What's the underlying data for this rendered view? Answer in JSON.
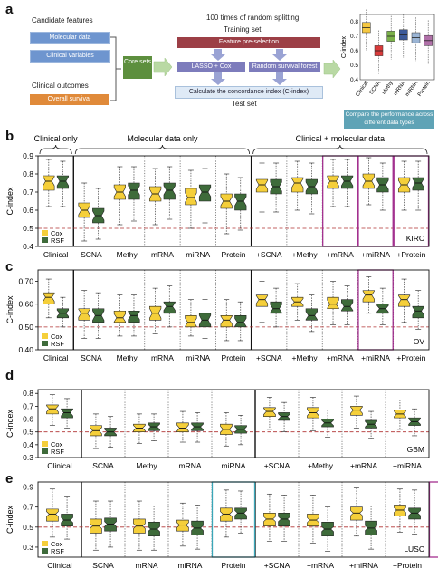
{
  "figure_a": {
    "panel_label": "a",
    "candidate_features_label": "Candidate features",
    "molecular_data_label": "Molecular data",
    "clinical_variables_label": "Clinical variables",
    "clinical_outcomes_label": "Clinical outcomes",
    "overall_survival_label": "Overall survival",
    "core_sets_label": "Core sets",
    "random_splitting_label": "100 times of random splitting",
    "training_set_label": "Training set",
    "feature_preselection_label": "Feature pre-selection",
    "lasso_cox_label": "LASSO + Cox",
    "random_forest_label": "Random survival forest",
    "concordance_label": "Calculate the concordance index (C-index)",
    "test_set_label": "Test set",
    "compare_label": "Compare the performance across different data types",
    "mini_chart": {
      "ylabel": "C-index",
      "yticks": [
        "0.8",
        "0.7",
        "0.6",
        "0.5",
        "0.4"
      ],
      "categories": [
        "Clinical",
        "SCNA",
        "Methy",
        "mRNA",
        "miRNA",
        "Protein"
      ],
      "colors": [
        "#f5c842",
        "#d93a3a",
        "#7ab04a",
        "#3c5a9a",
        "#9bb5d5",
        "#b070a8"
      ],
      "medians": [
        0.76,
        0.6,
        0.7,
        0.71,
        0.69,
        0.67
      ]
    }
  },
  "colors": {
    "cox": "#f5cf3a",
    "rsf": "#3e6b3a",
    "magenta_frame": "#a3308f",
    "cyan_frame": "#3aa6b8",
    "dashed": "#b03030",
    "blue_box": "#6e95cf",
    "orange_box": "#e08a3a",
    "green_box": "#5d8f3e",
    "maroon_box": "#9c3f46",
    "lavender_box": "#7d7cbc",
    "light_blue_box": "#dfeaf6",
    "teal_box": "#5fa3b6"
  },
  "chart_data": [
    {
      "panel": "b",
      "type": "box",
      "ylabel": "C-index",
      "ylim": [
        0.4,
        0.9
      ],
      "yticks": [
        0.4,
        0.5,
        0.6,
        0.7,
        0.8,
        0.9
      ],
      "ref_line": 0.5,
      "tag": "KIRC",
      "legend": [
        "Cox",
        "RSF"
      ],
      "groups": [
        {
          "label": "Clinical only",
          "from": 0,
          "to": 0
        },
        {
          "label": "Molecular data only",
          "from": 1,
          "to": 5
        },
        {
          "label": "Clinical + molecular data",
          "from": 6,
          "to": 10
        }
      ],
      "dividers": [
        0.5,
        5.5
      ],
      "highlight": [
        8,
        9,
        10
      ],
      "highlight_color": "magenta",
      "categories": [
        "Clinical",
        "SCNA",
        "Methy",
        "mRNA",
        "miRNA",
        "Protein",
        "+SCNA",
        "+Methy",
        "+mRNA",
        "+miRNA",
        "+Protein"
      ],
      "series": [
        {
          "name": "Cox",
          "stats": [
            [
              0.62,
              0.71,
              0.76,
              0.79,
              0.88
            ],
            [
              0.43,
              0.56,
              0.6,
              0.64,
              0.75
            ],
            [
              0.52,
              0.66,
              0.7,
              0.74,
              0.84
            ],
            [
              0.52,
              0.65,
              0.69,
              0.73,
              0.83
            ],
            [
              0.5,
              0.63,
              0.67,
              0.72,
              0.82
            ],
            [
              0.47,
              0.61,
              0.65,
              0.69,
              0.8
            ],
            [
              0.59,
              0.7,
              0.74,
              0.77,
              0.86
            ],
            [
              0.6,
              0.7,
              0.75,
              0.78,
              0.87
            ],
            [
              0.62,
              0.72,
              0.76,
              0.79,
              0.88
            ],
            [
              0.63,
              0.72,
              0.76,
              0.8,
              0.89
            ],
            [
              0.6,
              0.7,
              0.74,
              0.78,
              0.87
            ]
          ]
        },
        {
          "name": "RSF",
          "stats": [
            [
              0.62,
              0.72,
              0.76,
              0.79,
              0.87
            ],
            [
              0.44,
              0.53,
              0.57,
              0.61,
              0.72
            ],
            [
              0.54,
              0.66,
              0.71,
              0.75,
              0.84
            ],
            [
              0.55,
              0.66,
              0.71,
              0.75,
              0.84
            ],
            [
              0.53,
              0.65,
              0.7,
              0.74,
              0.83
            ],
            [
              0.49,
              0.6,
              0.65,
              0.69,
              0.78
            ],
            [
              0.59,
              0.69,
              0.73,
              0.77,
              0.86
            ],
            [
              0.58,
              0.69,
              0.73,
              0.77,
              0.86
            ],
            [
              0.62,
              0.72,
              0.76,
              0.79,
              0.88
            ],
            [
              0.6,
              0.7,
              0.74,
              0.78,
              0.86
            ],
            [
              0.6,
              0.71,
              0.75,
              0.78,
              0.87
            ]
          ]
        }
      ]
    },
    {
      "panel": "c",
      "type": "box",
      "ylabel": "C-index",
      "ylim": [
        0.4,
        0.75
      ],
      "yticks": [
        0.4,
        0.5,
        0.6,
        0.7
      ],
      "ytick_labels": [
        "0.40",
        "0.50",
        "0.60",
        "0.70"
      ],
      "ref_line": 0.5,
      "tag": "OV",
      "legend": [
        "Cox",
        "RSF"
      ],
      "dividers": [
        0.5,
        5.5
      ],
      "highlight": [
        9
      ],
      "highlight_color": "magenta",
      "categories": [
        "Clinical",
        "SCNA",
        "Methy",
        "mRNA",
        "miRNA",
        "Protein",
        "+SCNA",
        "+Methy",
        "+mRNA",
        "+miRNA",
        "+Protein"
      ],
      "series": [
        {
          "name": "Cox",
          "stats": [
            [
              0.54,
              0.6,
              0.63,
              0.65,
              0.71
            ],
            [
              0.45,
              0.53,
              0.56,
              0.58,
              0.66
            ],
            [
              0.46,
              0.52,
              0.54,
              0.57,
              0.64
            ],
            [
              0.47,
              0.53,
              0.56,
              0.59,
              0.67
            ],
            [
              0.46,
              0.5,
              0.52,
              0.55,
              0.62
            ],
            [
              0.44,
              0.5,
              0.53,
              0.55,
              0.62
            ],
            [
              0.52,
              0.59,
              0.62,
              0.64,
              0.7
            ],
            [
              0.53,
              0.59,
              0.61,
              0.63,
              0.69
            ],
            [
              0.51,
              0.58,
              0.6,
              0.63,
              0.7
            ],
            [
              0.56,
              0.61,
              0.64,
              0.66,
              0.72
            ],
            [
              0.52,
              0.59,
              0.62,
              0.64,
              0.71
            ]
          ]
        },
        {
          "name": "RSF",
          "stats": [
            [
              0.5,
              0.54,
              0.56,
              0.58,
              0.63
            ],
            [
              0.45,
              0.52,
              0.55,
              0.58,
              0.65
            ],
            [
              0.46,
              0.52,
              0.55,
              0.57,
              0.64
            ],
            [
              0.5,
              0.56,
              0.59,
              0.61,
              0.68
            ],
            [
              0.45,
              0.5,
              0.53,
              0.56,
              0.62
            ],
            [
              0.44,
              0.5,
              0.52,
              0.55,
              0.61
            ],
            [
              0.5,
              0.56,
              0.58,
              0.61,
              0.67
            ],
            [
              0.48,
              0.53,
              0.55,
              0.58,
              0.64
            ],
            [
              0.51,
              0.57,
              0.59,
              0.62,
              0.68
            ],
            [
              0.51,
              0.56,
              0.58,
              0.6,
              0.67
            ],
            [
              0.49,
              0.54,
              0.57,
              0.59,
              0.66
            ]
          ]
        }
      ]
    },
    {
      "panel": "d",
      "type": "box",
      "ylabel": "C-index",
      "ylim": [
        0.3,
        0.83
      ],
      "yticks": [
        0.3,
        0.4,
        0.5,
        0.6,
        0.7,
        0.8
      ],
      "ref_line": 0.5,
      "tag": "GBM",
      "legend": [
        "Cox",
        "RSF"
      ],
      "dividers": [
        0.5,
        4.5
      ],
      "highlight": [],
      "categories": [
        "Clinical",
        "SCNA",
        "Methy",
        "mRNA",
        "miRNA",
        "+SCNA",
        "+Methy",
        "+mRNA",
        "+miRNA"
      ],
      "series": [
        {
          "name": "Cox",
          "stats": [
            [
              0.55,
              0.64,
              0.68,
              0.71,
              0.79
            ],
            [
              0.37,
              0.47,
              0.51,
              0.55,
              0.64
            ],
            [
              0.41,
              0.5,
              0.53,
              0.56,
              0.64
            ],
            [
              0.42,
              0.5,
              0.53,
              0.57,
              0.66
            ],
            [
              0.39,
              0.48,
              0.52,
              0.56,
              0.65
            ],
            [
              0.52,
              0.62,
              0.66,
              0.69,
              0.77
            ],
            [
              0.51,
              0.61,
              0.65,
              0.69,
              0.77
            ],
            [
              0.53,
              0.63,
              0.67,
              0.7,
              0.78
            ],
            [
              0.52,
              0.61,
              0.64,
              0.67,
              0.75
            ]
          ]
        },
        {
          "name": "RSF",
          "stats": [
            [
              0.53,
              0.61,
              0.65,
              0.68,
              0.76
            ],
            [
              0.38,
              0.47,
              0.5,
              0.53,
              0.62
            ],
            [
              0.43,
              0.51,
              0.54,
              0.57,
              0.64
            ],
            [
              0.42,
              0.51,
              0.54,
              0.57,
              0.65
            ],
            [
              0.4,
              0.49,
              0.52,
              0.55,
              0.63
            ],
            [
              0.5,
              0.59,
              0.62,
              0.65,
              0.73
            ],
            [
              0.46,
              0.54,
              0.57,
              0.6,
              0.67
            ],
            [
              0.45,
              0.53,
              0.56,
              0.59,
              0.66
            ],
            [
              0.47,
              0.55,
              0.58,
              0.61,
              0.68
            ]
          ]
        }
      ]
    },
    {
      "panel": "e",
      "type": "box",
      "ylabel": "C-index",
      "ylim": [
        0.2,
        0.95
      ],
      "yticks": [
        0.3,
        0.5,
        0.7,
        0.9
      ],
      "ref_line": 0.5,
      "tag": "LUSC",
      "legend": [
        "Cox",
        "RSF"
      ],
      "dividers": [
        0.5,
        4.5
      ],
      "highlight": [
        4
      ],
      "highlight_color": "cyan",
      "highlight2": [
        9
      ],
      "highlight2_color": "magenta",
      "categories": [
        "Clinical",
        "SCNA",
        "mRNA",
        "miRNA",
        "Protein",
        "+SCNA",
        "+mRNA",
        "+miRNA",
        "+Protein"
      ],
      "series": [
        {
          "name": "Cox",
          "stats": [
            [
              0.4,
              0.56,
              0.63,
              0.68,
              0.88
            ],
            [
              0.27,
              0.44,
              0.51,
              0.58,
              0.76
            ],
            [
              0.27,
              0.44,
              0.51,
              0.58,
              0.76
            ],
            [
              0.31,
              0.46,
              0.52,
              0.57,
              0.74
            ],
            [
              0.4,
              0.56,
              0.63,
              0.69,
              0.87
            ],
            [
              0.36,
              0.51,
              0.58,
              0.64,
              0.83
            ],
            [
              0.34,
              0.51,
              0.57,
              0.63,
              0.82
            ],
            [
              0.41,
              0.57,
              0.64,
              0.7,
              0.89
            ],
            [
              0.45,
              0.61,
              0.67,
              0.72,
              0.88
            ]
          ]
        },
        {
          "name": "RSF",
          "stats": [
            [
              0.38,
              0.51,
              0.57,
              0.63,
              0.8
            ],
            [
              0.3,
              0.46,
              0.53,
              0.59,
              0.76
            ],
            [
              0.27,
              0.41,
              0.48,
              0.55,
              0.71
            ],
            [
              0.28,
              0.42,
              0.49,
              0.56,
              0.72
            ],
            [
              0.44,
              0.58,
              0.64,
              0.69,
              0.86
            ],
            [
              0.36,
              0.51,
              0.58,
              0.64,
              0.82
            ],
            [
              0.26,
              0.41,
              0.48,
              0.55,
              0.7
            ],
            [
              0.28,
              0.42,
              0.49,
              0.56,
              0.71
            ],
            [
              0.43,
              0.58,
              0.64,
              0.69,
              0.87
            ]
          ]
        }
      ]
    }
  ]
}
